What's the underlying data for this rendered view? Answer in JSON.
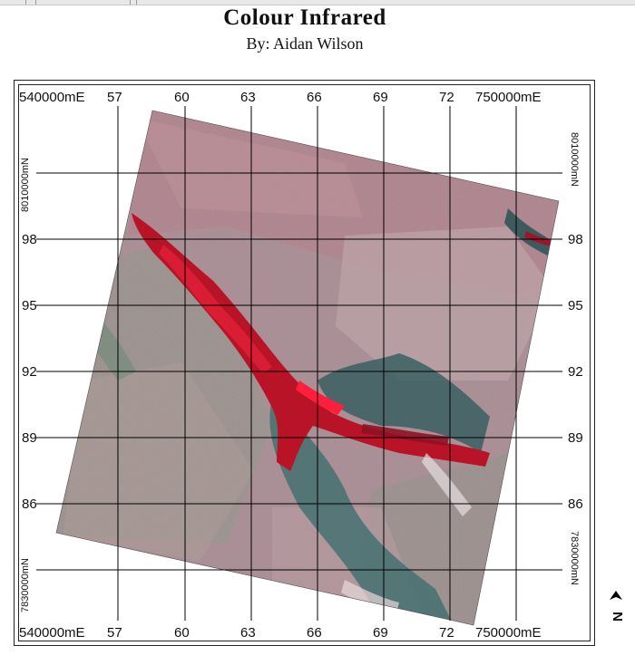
{
  "title": "Colour Infrared",
  "subtitle": "By: Aidan Wilson",
  "north_label": "N",
  "north_icon": "north-arrow-icon",
  "grid": {
    "x_labels": [
      "540000mE",
      "57",
      "60",
      "63",
      "66",
      "69",
      "72",
      "750000mE"
    ],
    "y_labels": [
      "8010000mN",
      "98",
      "95",
      "92",
      "89",
      "86",
      "7830000mN"
    ],
    "left_y_labels": [
      "98",
      "95",
      "92",
      "89",
      "86"
    ],
    "right_y_labels": [
      "98",
      "95",
      "92",
      "89",
      "86"
    ],
    "top_left_corner": "540000mE",
    "top_right_corner": "750000mE",
    "bottom_left_corner": "540000mE",
    "bottom_right_corner": "750000mE",
    "top_left_vertical": "8010000mN",
    "top_right_vertical": "8010000mN",
    "bottom_left_vertical": "7830000mN",
    "bottom_right_vertical": "7830000mN"
  },
  "colors": {
    "vegetation_red": "#c0182a",
    "water_teal": "#2f6a6a",
    "land_pink": "#b48c94",
    "grid": "#000000"
  }
}
